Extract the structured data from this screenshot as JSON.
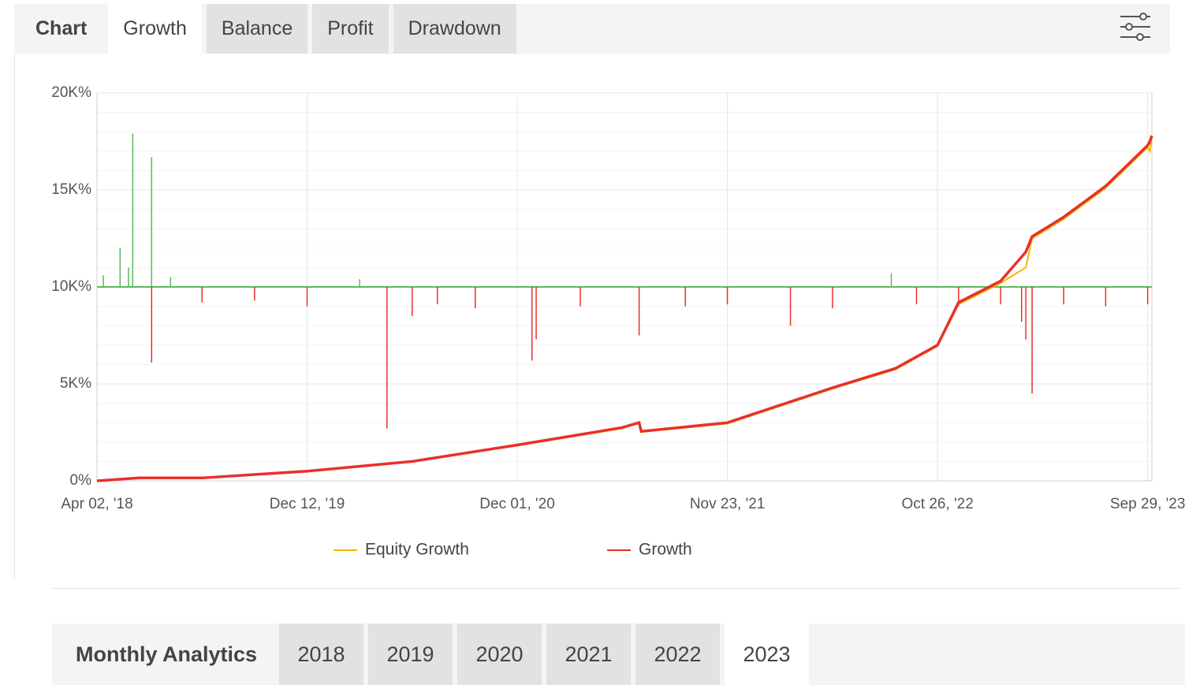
{
  "tabs": {
    "label": "Chart",
    "items": [
      "Growth",
      "Balance",
      "Profit",
      "Drawdown"
    ],
    "active": 0
  },
  "chart_data": {
    "type": "line",
    "xlim": [
      0,
      5.02
    ],
    "xticks": [
      {
        "value": 0,
        "label": "Apr 02, '18"
      },
      {
        "value": 1,
        "label": "Dec 12, '19"
      },
      {
        "value": 2,
        "label": "Dec 01, '20"
      },
      {
        "value": 3,
        "label": "Nov 23, '21"
      },
      {
        "value": 4,
        "label": "Oct 26, '22"
      },
      {
        "value": 5,
        "label": "Sep 29, '23"
      }
    ],
    "ylim": [
      0,
      20000
    ],
    "yticks": [
      {
        "value": 0,
        "label": "0%"
      },
      {
        "value": 5000,
        "label": "5K%"
      },
      {
        "value": 10000,
        "label": "10K%"
      },
      {
        "value": 15000,
        "label": "15K%"
      },
      {
        "value": 20000,
        "label": "20K%"
      }
    ],
    "grid": true,
    "series": [
      {
        "name": "Equity Growth",
        "color": "#f5b700",
        "x": [
          0,
          0.2,
          0.5,
          1.0,
          1.5,
          2.0,
          2.5,
          2.58,
          2.59,
          3.0,
          3.5,
          3.8,
          4.0,
          4.1,
          4.3,
          4.42,
          4.45,
          4.6,
          4.8,
          5.0,
          5.01,
          5.02
        ],
        "values": [
          0,
          120,
          130,
          480,
          980,
          1820,
          2700,
          2980,
          2520,
          2950,
          4750,
          5750,
          6950,
          9100,
          10200,
          11000,
          12500,
          13500,
          15100,
          17200,
          17000,
          17700
        ]
      },
      {
        "name": "Growth",
        "color": "#e8312a",
        "x": [
          0,
          0.2,
          0.5,
          1.0,
          1.5,
          2.0,
          2.5,
          2.58,
          2.59,
          3.0,
          3.5,
          3.8,
          4.0,
          4.1,
          4.3,
          4.42,
          4.45,
          4.6,
          4.8,
          5.0,
          5.01,
          5.02
        ],
        "values": [
          0,
          150,
          150,
          500,
          1000,
          1850,
          2750,
          3000,
          2550,
          3000,
          4800,
          5800,
          7000,
          9200,
          10300,
          11800,
          12600,
          13600,
          15200,
          17300,
          17500,
          17800
        ]
      }
    ],
    "bars": {
      "baseline": 10000,
      "up_color": "#5cb85c",
      "down_color": "#e8312a",
      "x": [
        0.03,
        0.11,
        0.15,
        0.17,
        0.26,
        0.26,
        0.35,
        0.5,
        0.75,
        1.0,
        1.25,
        1.38,
        1.5,
        1.62,
        1.8,
        2.07,
        2.09,
        2.3,
        2.58,
        2.8,
        3.0,
        3.3,
        3.5,
        3.78,
        3.9,
        4.1,
        4.3,
        4.4,
        4.42,
        4.45,
        4.6,
        4.8,
        5.0
      ],
      "values": [
        10600,
        12000,
        11000,
        17900,
        16700,
        6100,
        10500,
        9200,
        9300,
        9000,
        10400,
        2700,
        8500,
        9100,
        8900,
        6200,
        7300,
        9000,
        7500,
        9000,
        9100,
        8000,
        8900,
        10700,
        9100,
        9000,
        9100,
        8200,
        7300,
        4500,
        9100,
        9000,
        9100
      ]
    },
    "legend": "bottom"
  },
  "analytics": {
    "label": "Monthly Analytics",
    "items": [
      "2018",
      "2019",
      "2020",
      "2021",
      "2022",
      "2023"
    ],
    "active": 5
  }
}
